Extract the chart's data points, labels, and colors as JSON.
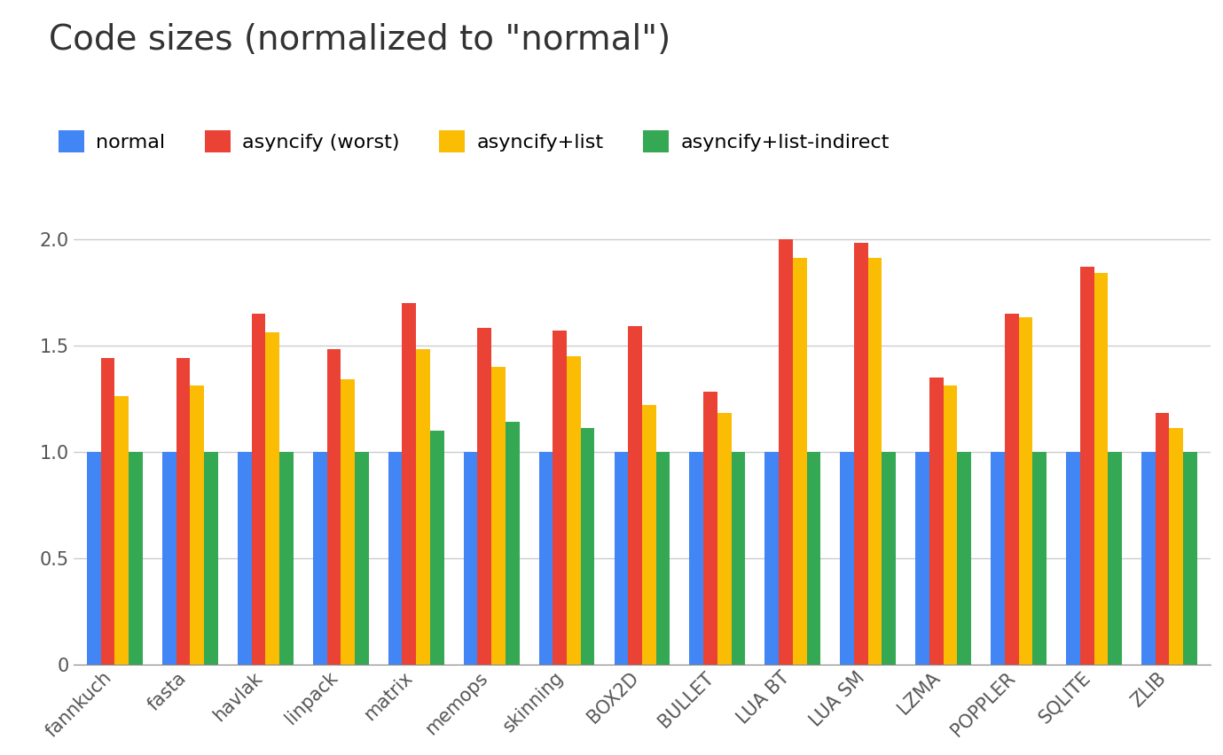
{
  "title": "Code sizes (normalized to \"normal\")",
  "categories": [
    "fannkuch",
    "fasta",
    "havlak",
    "linpack",
    "matrix",
    "memops",
    "skinning",
    "BOX2D",
    "BULLET",
    "LUA BT",
    "LUA SM",
    "LZMA",
    "POPPLER",
    "SQLITE",
    "ZLIB"
  ],
  "series": [
    {
      "label": "normal",
      "color": "#4285F4",
      "values": [
        1.0,
        1.0,
        1.0,
        1.0,
        1.0,
        1.0,
        1.0,
        1.0,
        1.0,
        1.0,
        1.0,
        1.0,
        1.0,
        1.0,
        1.0
      ]
    },
    {
      "label": "asyncify (worst)",
      "color": "#EA4335",
      "values": [
        1.44,
        1.44,
        1.65,
        1.48,
        1.7,
        1.58,
        1.57,
        1.59,
        1.28,
        2.0,
        1.98,
        1.35,
        1.65,
        1.87,
        1.18
      ]
    },
    {
      "label": "asyncify+list",
      "color": "#FBBC04",
      "values": [
        1.26,
        1.31,
        1.56,
        1.34,
        1.48,
        1.4,
        1.45,
        1.22,
        1.18,
        1.91,
        1.91,
        1.31,
        1.63,
        1.84,
        1.11
      ]
    },
    {
      "label": "asyncify+list-indirect",
      "color": "#34A853",
      "values": [
        1.0,
        1.0,
        1.0,
        1.0,
        1.1,
        1.14,
        1.11,
        1.0,
        1.0,
        1.0,
        1.0,
        1.0,
        1.0,
        1.0,
        1.0
      ]
    }
  ],
  "ylim": [
    0,
    2.2
  ],
  "yticks": [
    0,
    0.5,
    1.0,
    1.5,
    2.0
  ],
  "background_color": "#ffffff",
  "grid_color": "#cccccc",
  "bar_width": 0.185,
  "title_fontsize": 28,
  "legend_fontsize": 16,
  "tick_fontsize": 15
}
